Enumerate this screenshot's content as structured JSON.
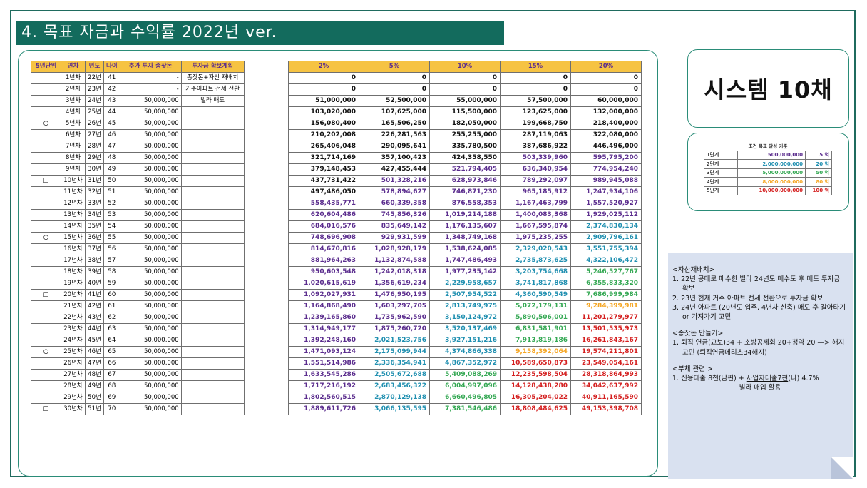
{
  "title": "4. 목표 자금과 수익률 2022년 ver.",
  "system_title": "시스템 10채",
  "colors": {
    "header_bg": "#f6c343",
    "header_text": "#5b2d8e",
    "title_bg": "#136b5d",
    "black": "#111111",
    "purple": "#5b2d8e",
    "blue": "#2f66c4",
    "teal": "#1f8fb0",
    "green": "#34a853",
    "orange": "#f5a623",
    "red": "#d41f1f"
  },
  "left_headers": [
    "5년단위",
    "연차",
    "년도",
    "나이",
    "추가 투자 종잣돈",
    "투자금 확보계획"
  ],
  "right_headers": [
    "2%",
    "5%",
    "10%",
    "15%",
    "20%"
  ],
  "rows": [
    {
      "mark": "",
      "year_no": "1년차",
      "yr": "22년",
      "age": "41",
      "add": "-",
      "plan": "종잣돈+자산 재배치",
      "vals": [
        "0",
        "0",
        "0",
        "0",
        "0"
      ],
      "c": [
        "k",
        "k",
        "k",
        "k",
        "k"
      ]
    },
    {
      "mark": "",
      "year_no": "2년차",
      "yr": "23년",
      "age": "42",
      "add": "-",
      "plan": "거주아파트 전세 전환",
      "vals": [
        "0",
        "0",
        "0",
        "0",
        "0"
      ],
      "c": [
        "k",
        "k",
        "k",
        "k",
        "k"
      ]
    },
    {
      "mark": "",
      "year_no": "3년차",
      "yr": "24년",
      "age": "43",
      "add": "50,000,000",
      "plan": "빌라 매도",
      "vals": [
        "51,000,000",
        "52,500,000",
        "55,000,000",
        "57,500,000",
        "60,000,000"
      ],
      "c": [
        "k",
        "k",
        "k",
        "k",
        "k"
      ]
    },
    {
      "mark": "",
      "year_no": "4년차",
      "yr": "25년",
      "age": "44",
      "add": "50,000,000",
      "plan": "",
      "vals": [
        "103,020,000",
        "107,625,000",
        "115,500,000",
        "123,625,000",
        "132,000,000"
      ],
      "c": [
        "k",
        "k",
        "k",
        "k",
        "k"
      ]
    },
    {
      "mark": "○",
      "year_no": "5년차",
      "yr": "26년",
      "age": "45",
      "add": "50,000,000",
      "plan": "",
      "vals": [
        "156,080,400",
        "165,506,250",
        "182,050,000",
        "199,668,750",
        "218,400,000"
      ],
      "c": [
        "k",
        "k",
        "k",
        "k",
        "k"
      ]
    },
    {
      "mark": "",
      "year_no": "6년차",
      "yr": "27년",
      "age": "46",
      "add": "50,000,000",
      "plan": "",
      "vals": [
        "210,202,008",
        "226,281,563",
        "255,255,000",
        "287,119,063",
        "322,080,000"
      ],
      "c": [
        "k",
        "k",
        "k",
        "k",
        "k"
      ]
    },
    {
      "mark": "",
      "year_no": "7년차",
      "yr": "28년",
      "age": "47",
      "add": "50,000,000",
      "plan": "",
      "vals": [
        "265,406,048",
        "290,095,641",
        "335,780,500",
        "387,686,922",
        "446,496,000"
      ],
      "c": [
        "k",
        "k",
        "k",
        "k",
        "k"
      ]
    },
    {
      "mark": "",
      "year_no": "8년차",
      "yr": "29년",
      "age": "48",
      "add": "50,000,000",
      "plan": "",
      "vals": [
        "321,714,169",
        "357,100,423",
        "424,358,550",
        "503,339,960",
        "595,795,200"
      ],
      "c": [
        "k",
        "k",
        "k",
        "p",
        "p"
      ]
    },
    {
      "mark": "",
      "year_no": "9년차",
      "yr": "30년",
      "age": "49",
      "add": "50,000,000",
      "plan": "",
      "vals": [
        "379,148,453",
        "427,455,444",
        "521,794,405",
        "636,340,954",
        "774,954,240"
      ],
      "c": [
        "k",
        "k",
        "p",
        "p",
        "p"
      ]
    },
    {
      "mark": "□",
      "year_no": "10년차",
      "yr": "31년",
      "age": "50",
      "add": "50,000,000",
      "plan": "",
      "vals": [
        "437,731,422",
        "501,328,216",
        "628,973,846",
        "789,292,097",
        "989,945,088"
      ],
      "c": [
        "k",
        "p",
        "p",
        "p",
        "p"
      ]
    },
    {
      "mark": "",
      "year_no": "11년차",
      "yr": "32년",
      "age": "51",
      "add": "50,000,000",
      "plan": "",
      "vals": [
        "497,486,050",
        "578,894,627",
        "746,871,230",
        "965,185,912",
        "1,247,934,106"
      ],
      "c": [
        "k",
        "p",
        "p",
        "p",
        "p"
      ]
    },
    {
      "mark": "",
      "year_no": "12년차",
      "yr": "33년",
      "age": "52",
      "add": "50,000,000",
      "plan": "",
      "vals": [
        "558,435,771",
        "660,339,358",
        "876,558,353",
        "1,167,463,799",
        "1,557,520,927"
      ],
      "c": [
        "p",
        "p",
        "p",
        "p",
        "p"
      ]
    },
    {
      "mark": "",
      "year_no": "13년차",
      "yr": "34년",
      "age": "53",
      "add": "50,000,000",
      "plan": "",
      "vals": [
        "620,604,486",
        "745,856,326",
        "1,019,214,188",
        "1,400,083,368",
        "1,929,025,112"
      ],
      "c": [
        "p",
        "p",
        "p",
        "p",
        "p"
      ]
    },
    {
      "mark": "",
      "year_no": "14년차",
      "yr": "35년",
      "age": "54",
      "add": "50,000,000",
      "plan": "",
      "vals": [
        "684,016,576",
        "835,649,142",
        "1,176,135,607",
        "1,667,595,874",
        "2,374,830,134"
      ],
      "c": [
        "p",
        "p",
        "p",
        "p",
        "b"
      ]
    },
    {
      "mark": "○",
      "year_no": "15년차",
      "yr": "36년",
      "age": "55",
      "add": "50,000,000",
      "plan": "",
      "vals": [
        "748,696,908",
        "929,931,599",
        "1,348,749,168",
        "1,975,235,255",
        "2,909,796,161"
      ],
      "c": [
        "p",
        "p",
        "p",
        "p",
        "b"
      ]
    },
    {
      "mark": "",
      "year_no": "16년차",
      "yr": "37년",
      "age": "56",
      "add": "50,000,000",
      "plan": "",
      "vals": [
        "814,670,816",
        "1,028,928,179",
        "1,538,624,085",
        "2,329,020,543",
        "3,551,755,394"
      ],
      "c": [
        "p",
        "p",
        "p",
        "b",
        "b"
      ]
    },
    {
      "mark": "",
      "year_no": "17년차",
      "yr": "38년",
      "age": "57",
      "add": "50,000,000",
      "plan": "",
      "vals": [
        "881,964,263",
        "1,132,874,588",
        "1,747,486,493",
        "2,735,873,625",
        "4,322,106,472"
      ],
      "c": [
        "p",
        "p",
        "p",
        "b",
        "b"
      ]
    },
    {
      "mark": "",
      "year_no": "18년차",
      "yr": "39년",
      "age": "58",
      "add": "50,000,000",
      "plan": "",
      "vals": [
        "950,603,548",
        "1,242,018,318",
        "1,977,235,142",
        "3,203,754,668",
        "5,246,527,767"
      ],
      "c": [
        "p",
        "p",
        "p",
        "b",
        "g"
      ]
    },
    {
      "mark": "",
      "year_no": "19년차",
      "yr": "40년",
      "age": "59",
      "add": "50,000,000",
      "plan": "",
      "vals": [
        "1,020,615,619",
        "1,356,619,234",
        "2,229,958,657",
        "3,741,817,868",
        "6,355,833,320"
      ],
      "c": [
        "p",
        "p",
        "b",
        "b",
        "g"
      ]
    },
    {
      "mark": "□",
      "year_no": "20년차",
      "yr": "41년",
      "age": "60",
      "add": "50,000,000",
      "plan": "",
      "vals": [
        "1,092,027,931",
        "1,476,950,195",
        "2,507,954,522",
        "4,360,590,549",
        "7,686,999,984"
      ],
      "c": [
        "p",
        "p",
        "b",
        "b",
        "g"
      ]
    },
    {
      "mark": "",
      "year_no": "21년차",
      "yr": "42년",
      "age": "61",
      "add": "50,000,000",
      "plan": "",
      "vals": [
        "1,164,868,490",
        "1,603,297,705",
        "2,813,749,975",
        "5,072,179,131",
        "9,284,399,981"
      ],
      "c": [
        "p",
        "p",
        "b",
        "g",
        "o"
      ]
    },
    {
      "mark": "",
      "year_no": "22년차",
      "yr": "43년",
      "age": "62",
      "add": "50,000,000",
      "plan": "",
      "vals": [
        "1,239,165,860",
        "1,735,962,590",
        "3,150,124,972",
        "5,890,506,001",
        "11,201,279,977"
      ],
      "c": [
        "p",
        "p",
        "b",
        "g",
        "r"
      ]
    },
    {
      "mark": "",
      "year_no": "23년차",
      "yr": "44년",
      "age": "63",
      "add": "50,000,000",
      "plan": "",
      "vals": [
        "1,314,949,177",
        "1,875,260,720",
        "3,520,137,469",
        "6,831,581,901",
        "13,501,535,973"
      ],
      "c": [
        "p",
        "p",
        "b",
        "g",
        "r"
      ]
    },
    {
      "mark": "",
      "year_no": "24년차",
      "yr": "45년",
      "age": "64",
      "add": "50,000,000",
      "plan": "",
      "vals": [
        "1,392,248,160",
        "2,021,523,756",
        "3,927,151,216",
        "7,913,819,186",
        "16,261,843,167"
      ],
      "c": [
        "p",
        "b",
        "b",
        "g",
        "r"
      ]
    },
    {
      "mark": "○",
      "year_no": "25년차",
      "yr": "46년",
      "age": "65",
      "add": "50,000,000",
      "plan": "",
      "vals": [
        "1,471,093,124",
        "2,175,099,944",
        "4,374,866,338",
        "9,158,392,064",
        "19,574,211,801"
      ],
      "c": [
        "p",
        "b",
        "b",
        "o",
        "r"
      ]
    },
    {
      "mark": "",
      "year_no": "26년차",
      "yr": "47년",
      "age": "66",
      "add": "50,000,000",
      "plan": "",
      "vals": [
        "1,551,514,986",
        "2,336,354,941",
        "4,867,352,972",
        "10,589,650,873",
        "23,549,054,161"
      ],
      "c": [
        "p",
        "b",
        "b",
        "r",
        "r"
      ]
    },
    {
      "mark": "",
      "year_no": "27년차",
      "yr": "48년",
      "age": "67",
      "add": "50,000,000",
      "plan": "",
      "vals": [
        "1,633,545,286",
        "2,505,672,688",
        "5,409,088,269",
        "12,235,598,504",
        "28,318,864,993"
      ],
      "c": [
        "p",
        "b",
        "g",
        "r",
        "r"
      ]
    },
    {
      "mark": "",
      "year_no": "28년차",
      "yr": "49년",
      "age": "68",
      "add": "50,000,000",
      "plan": "",
      "vals": [
        "1,717,216,192",
        "2,683,456,322",
        "6,004,997,096",
        "14,128,438,280",
        "34,042,637,992"
      ],
      "c": [
        "p",
        "b",
        "g",
        "r",
        "r"
      ]
    },
    {
      "mark": "",
      "year_no": "29년차",
      "yr": "50년",
      "age": "69",
      "add": "50,000,000",
      "plan": "",
      "vals": [
        "1,802,560,515",
        "2,870,129,138",
        "6,660,496,805",
        "16,305,204,022",
        "40,911,165,590"
      ],
      "c": [
        "p",
        "b",
        "g",
        "r",
        "r"
      ]
    },
    {
      "mark": "□",
      "year_no": "30년차",
      "yr": "51년",
      "age": "70",
      "add": "50,000,000",
      "plan": "",
      "vals": [
        "1,889,611,726",
        "3,066,135,595",
        "7,381,546,486",
        "18,808,484,625",
        "49,153,398,708"
      ],
      "c": [
        "p",
        "b",
        "g",
        "r",
        "r"
      ]
    }
  ],
  "goal": {
    "header": "조건 목표 달성 기준",
    "rows": [
      {
        "stage": "1단계",
        "amount": "500,000,000",
        "short": "5 억",
        "color": "p"
      },
      {
        "stage": "2단계",
        "amount": "2,000,000,000",
        "short": "20 억",
        "color": "b"
      },
      {
        "stage": "3단계",
        "amount": "5,000,000,000",
        "short": "50 억",
        "color": "g"
      },
      {
        "stage": "4단계",
        "amount": "8,000,000,000",
        "short": "80 억",
        "color": "o"
      },
      {
        "stage": "5단계",
        "amount": "10,000,000,000",
        "short": "100 억",
        "color": "r"
      }
    ]
  },
  "notes": {
    "s1_title": "<자산재배치>",
    "s1_items": [
      "1.   22년 공매로 매수한 빌라 24년도 매수도 후 매도 투자금 확보",
      "2.   23년 현재 거주 아파트 전세 전환으로 투자금 확보",
      "3.   24년 아파트 (20년도 입주, 4년차 신축) 매도 후 갈아타기 or 가져가기 고민"
    ],
    "s2_title": "<종잣돈 만들기>",
    "s2_items": [
      "1.   퇴직 연금(교보)34 + 소방공제회 20+청약 20 —> 해지 고민 (퇴직연금메리츠34해지)"
    ],
    "s3_title": "<부채 관련 >",
    "s3_line1a": "1. 신용대출 8천(남편) + ",
    "s3_line1b": "사업자대출7천",
    "s3_line1c": "(나) 4.7%",
    "s3_line2": "빌라 매입 활용"
  }
}
